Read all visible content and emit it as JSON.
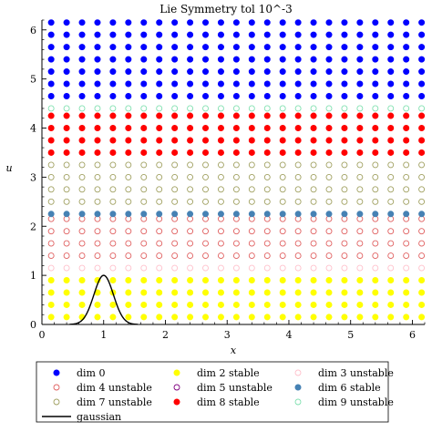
{
  "chart_data": {
    "type": "scatter",
    "title": "Lie Symmetry tol 10^-3",
    "xlabel": "x",
    "ylabel": "u",
    "xlim": [
      0,
      6.2
    ],
    "ylim": [
      0,
      6.2
    ],
    "x_ticks": [
      "0",
      "1",
      "2",
      "3",
      "4",
      "5",
      "6"
    ],
    "y_ticks": [
      "0",
      "1",
      "2",
      "3",
      "4",
      "5",
      "6"
    ],
    "grid": false,
    "legend_placement": "bottom",
    "x_points": [
      0.15,
      0.4,
      0.65,
      0.9,
      1.15,
      1.4,
      1.65,
      1.9,
      2.15,
      2.4,
      2.65,
      2.9,
      3.15,
      3.4,
      3.65,
      3.9,
      4.15,
      4.4,
      4.65,
      4.9,
      5.15,
      5.4,
      5.65,
      5.9,
      6.15
    ],
    "series": [
      {
        "name": "dim 0",
        "marker": "filled",
        "color": "#0000ff",
        "u": [
          4.65,
          4.9,
          5.15,
          5.4,
          5.65,
          5.9,
          6.15
        ]
      },
      {
        "name": "dim 2 stable",
        "marker": "filled",
        "color": "#ffff00",
        "u": [
          0.15,
          0.4,
          0.65,
          0.9
        ]
      },
      {
        "name": "dim 3 unstable",
        "marker": "open",
        "color": "#ffc0cb",
        "u": [
          1.15
        ]
      },
      {
        "name": "dim 4 unstable",
        "marker": "open",
        "color": "#e06060",
        "u": [
          1.4,
          1.65,
          1.9,
          2.15
        ]
      },
      {
        "name": "dim 5 unstable",
        "marker": "open",
        "color": "#800080",
        "u": []
      },
      {
        "name": "dim 6 stable",
        "marker": "filled",
        "color": "#4682b4",
        "u": [
          2.25
        ]
      },
      {
        "name": "dim 7 unstable",
        "marker": "open",
        "color": "#a0a060",
        "u": [
          2.5,
          2.75,
          3.0,
          3.25
        ]
      },
      {
        "name": "dim 8 stable",
        "marker": "filled",
        "color": "#ff0000",
        "u": [
          3.5,
          3.75,
          4.0,
          4.25
        ]
      },
      {
        "name": "dim 9 unstable",
        "marker": "open",
        "color": "#80e0b0",
        "u": [
          4.4
        ]
      }
    ],
    "curves": [
      {
        "name": "gaussian",
        "color": "#000000",
        "function": "exp(-(x-1)^2/0.05)"
      }
    ]
  },
  "legend": {
    "items": [
      {
        "label": "dim 0",
        "marker": "filled",
        "color": "#0000ff"
      },
      {
        "label": "dim 2 stable",
        "marker": "filled",
        "color": "#ffff00"
      },
      {
        "label": "dim 3 unstable",
        "marker": "open",
        "color": "#ffc0cb"
      },
      {
        "label": "dim 4 unstable",
        "marker": "open",
        "color": "#e06060"
      },
      {
        "label": "dim 5 unstable",
        "marker": "open",
        "color": "#800080"
      },
      {
        "label": "dim 6 stable",
        "marker": "filled",
        "color": "#4682b4"
      },
      {
        "label": "dim 7 unstable",
        "marker": "open",
        "color": "#a0a060"
      },
      {
        "label": "dim 8 stable",
        "marker": "filled",
        "color": "#ff0000"
      },
      {
        "label": "dim 9 unstable",
        "marker": "open",
        "color": "#80e0b0"
      },
      {
        "label": "gaussian",
        "marker": "line",
        "color": "#000000"
      }
    ]
  }
}
